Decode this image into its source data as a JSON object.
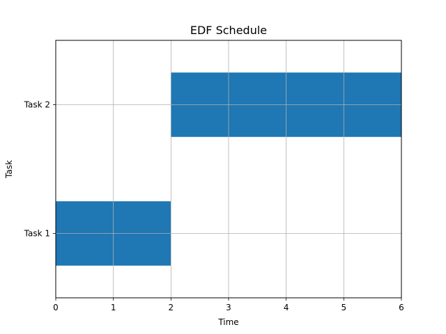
{
  "chart_data": {
    "type": "bar",
    "orientation": "horizontal",
    "title": "EDF Schedule",
    "xlabel": "Time",
    "ylabel": "Task",
    "xlim": [
      0,
      6
    ],
    "x_ticks": [
      "0",
      "1",
      "2",
      "3",
      "4",
      "5",
      "6"
    ],
    "categories": [
      "Task 1",
      "Task 2"
    ],
    "bars": [
      {
        "category": "Task 1",
        "start": 0,
        "end": 2
      },
      {
        "category": "Task 2",
        "start": 2,
        "end": 6
      }
    ],
    "bar_color": "#1f77b4",
    "grid": true
  }
}
